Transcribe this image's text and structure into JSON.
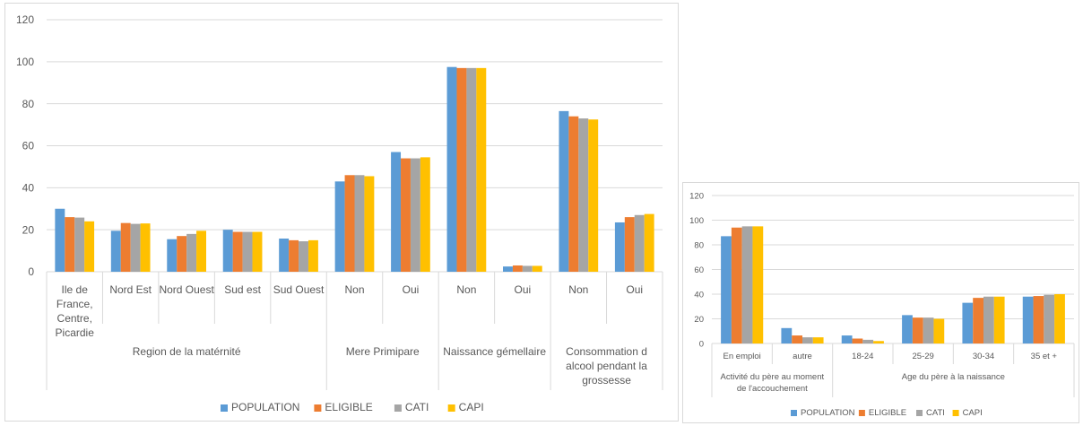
{
  "colors": {
    "POPULATION": "#5b9bd5",
    "ELIGIBLE": "#ed7d31",
    "CATI": "#a5a5a5",
    "CAPI": "#ffc000",
    "grid": "#d9d9d9",
    "text": "#595959"
  },
  "chart_data": [
    {
      "type": "bar",
      "ylim": [
        0,
        120
      ],
      "yticks": [
        "0",
        "20",
        "40",
        "60",
        "80",
        "100",
        "120"
      ],
      "grid": true,
      "legend_position": "bottom",
      "groups": [
        {
          "label": "Region de la matérnité",
          "label_lines": [
            "Region de la matérnité"
          ],
          "categories": [
            {
              "label": "Ile de France, Centre, Picardie",
              "label_lines": [
                "Ile de",
                "France,",
                "Centre,",
                "Picardie"
              ]
            },
            {
              "label": "Nord Est",
              "label_lines": [
                "Nord Est"
              ]
            },
            {
              "label": "Nord Ouest",
              "label_lines": [
                "Nord Ouest"
              ]
            },
            {
              "label": "Sud est",
              "label_lines": [
                "Sud est"
              ]
            },
            {
              "label": "Sud Ouest",
              "label_lines": [
                "Sud Ouest"
              ]
            }
          ]
        },
        {
          "label": "Mere Primipare",
          "label_lines": [
            "Mere Primipare"
          ],
          "categories": [
            {
              "label": "Non",
              "label_lines": [
                "Non"
              ]
            },
            {
              "label": "Oui",
              "label_lines": [
                "Oui"
              ]
            }
          ]
        },
        {
          "label": "Naissance gémellaire",
          "label_lines": [
            "Naissance gémellaire"
          ],
          "categories": [
            {
              "label": "Non",
              "label_lines": [
                "Non"
              ]
            },
            {
              "label": "Oui",
              "label_lines": [
                "Oui"
              ]
            }
          ]
        },
        {
          "label": "Consommation d alcool pendant la grossesse",
          "label_lines": [
            "Consommation d",
            "alcool pendant la",
            "grossesse"
          ],
          "categories": [
            {
              "label": "Non",
              "label_lines": [
                "Non"
              ]
            },
            {
              "label": "Oui",
              "label_lines": [
                "Oui"
              ]
            }
          ]
        }
      ],
      "series": [
        {
          "name": "POPULATION",
          "values": [
            30.0,
            19.5,
            15.5,
            20.0,
            15.8,
            43.0,
            57.0,
            97.5,
            2.5,
            76.5,
            23.5
          ]
        },
        {
          "name": "ELIGIBLE",
          "values": [
            26.0,
            23.2,
            17.0,
            19.0,
            15.0,
            46.0,
            54.0,
            97.0,
            3.0,
            74.0,
            26.0
          ]
        },
        {
          "name": "CATI",
          "values": [
            25.8,
            22.8,
            18.0,
            19.0,
            14.5,
            46.0,
            54.0,
            97.0,
            2.8,
            73.0,
            27.0
          ]
        },
        {
          "name": "CAPI",
          "values": [
            24.0,
            23.0,
            19.5,
            19.0,
            15.0,
            45.5,
            54.5,
            97.0,
            2.8,
            72.5,
            27.5
          ]
        }
      ]
    },
    {
      "type": "bar",
      "ylim": [
        0,
        120
      ],
      "yticks": [
        "0",
        "20",
        "40",
        "60",
        "80",
        "100",
        "120"
      ],
      "grid": true,
      "legend_position": "bottom",
      "groups": [
        {
          "label": "Activité du père au moment de l'accouchement",
          "label_lines": [
            "Activité du père au moment",
            "de l'accouchement"
          ],
          "categories": [
            {
              "label": "En emploi",
              "label_lines": [
                "En emploi"
              ]
            },
            {
              "label": "autre",
              "label_lines": [
                "autre"
              ]
            }
          ]
        },
        {
          "label": "Age du père à la naissance",
          "label_lines": [
            "Age du père à la naissance"
          ],
          "categories": [
            {
              "label": "18-24",
              "label_lines": [
                "18-24"
              ]
            },
            {
              "label": "25-29",
              "label_lines": [
                "25-29"
              ]
            },
            {
              "label": "30-34",
              "label_lines": [
                "30-34"
              ]
            },
            {
              "label": "35 et +",
              "label_lines": [
                "35 et +"
              ]
            }
          ]
        }
      ],
      "series": [
        {
          "name": "POPULATION",
          "values": [
            87.0,
            12.5,
            6.5,
            23.0,
            33.0,
            38.0
          ]
        },
        {
          "name": "ELIGIBLE",
          "values": [
            94.0,
            6.5,
            4.0,
            21.0,
            37.0,
            38.5
          ]
        },
        {
          "name": "CATI",
          "values": [
            95.0,
            5.0,
            3.0,
            21.0,
            38.0,
            39.5
          ]
        },
        {
          "name": "CAPI",
          "values": [
            95.0,
            5.0,
            2.0,
            20.0,
            38.0,
            40.0
          ]
        }
      ]
    }
  ]
}
